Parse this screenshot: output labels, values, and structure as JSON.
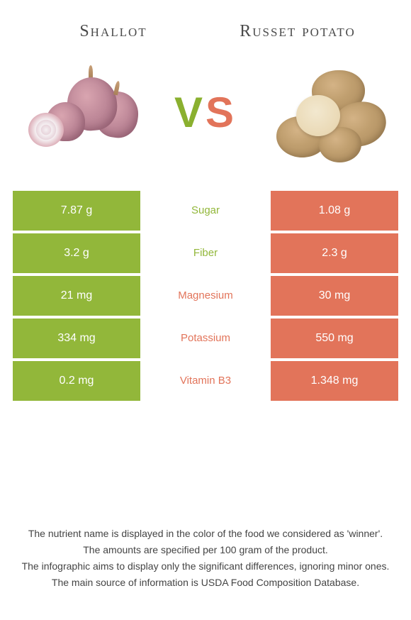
{
  "colors": {
    "green": "#92b73a",
    "orange": "#e2745a",
    "white": "#ffffff"
  },
  "left_food": {
    "title": "Shallot"
  },
  "right_food": {
    "title": "Russet potato"
  },
  "vs": {
    "v": "V",
    "s": "S"
  },
  "nutrients": [
    {
      "name": "Sugar",
      "left": "7.87 g",
      "right": "1.08 g",
      "winner": "left"
    },
    {
      "name": "Fiber",
      "left": "3.2 g",
      "right": "2.3 g",
      "winner": "left"
    },
    {
      "name": "Magnesium",
      "left": "21 mg",
      "right": "30 mg",
      "winner": "right"
    },
    {
      "name": "Potassium",
      "left": "334 mg",
      "right": "550 mg",
      "winner": "right"
    },
    {
      "name": "Vitamin B3",
      "left": "0.2 mg",
      "right": "1.348 mg",
      "winner": "right"
    }
  ],
  "footer": {
    "line1": "The nutrient name is displayed in the color of the food we considered as 'winner'.",
    "line2": "The amounts are specified per 100 gram of the product.",
    "line3": "The infographic aims to display only the significant differences, ignoring minor ones.",
    "line4": "The main source of information is USDA Food Composition Database."
  }
}
